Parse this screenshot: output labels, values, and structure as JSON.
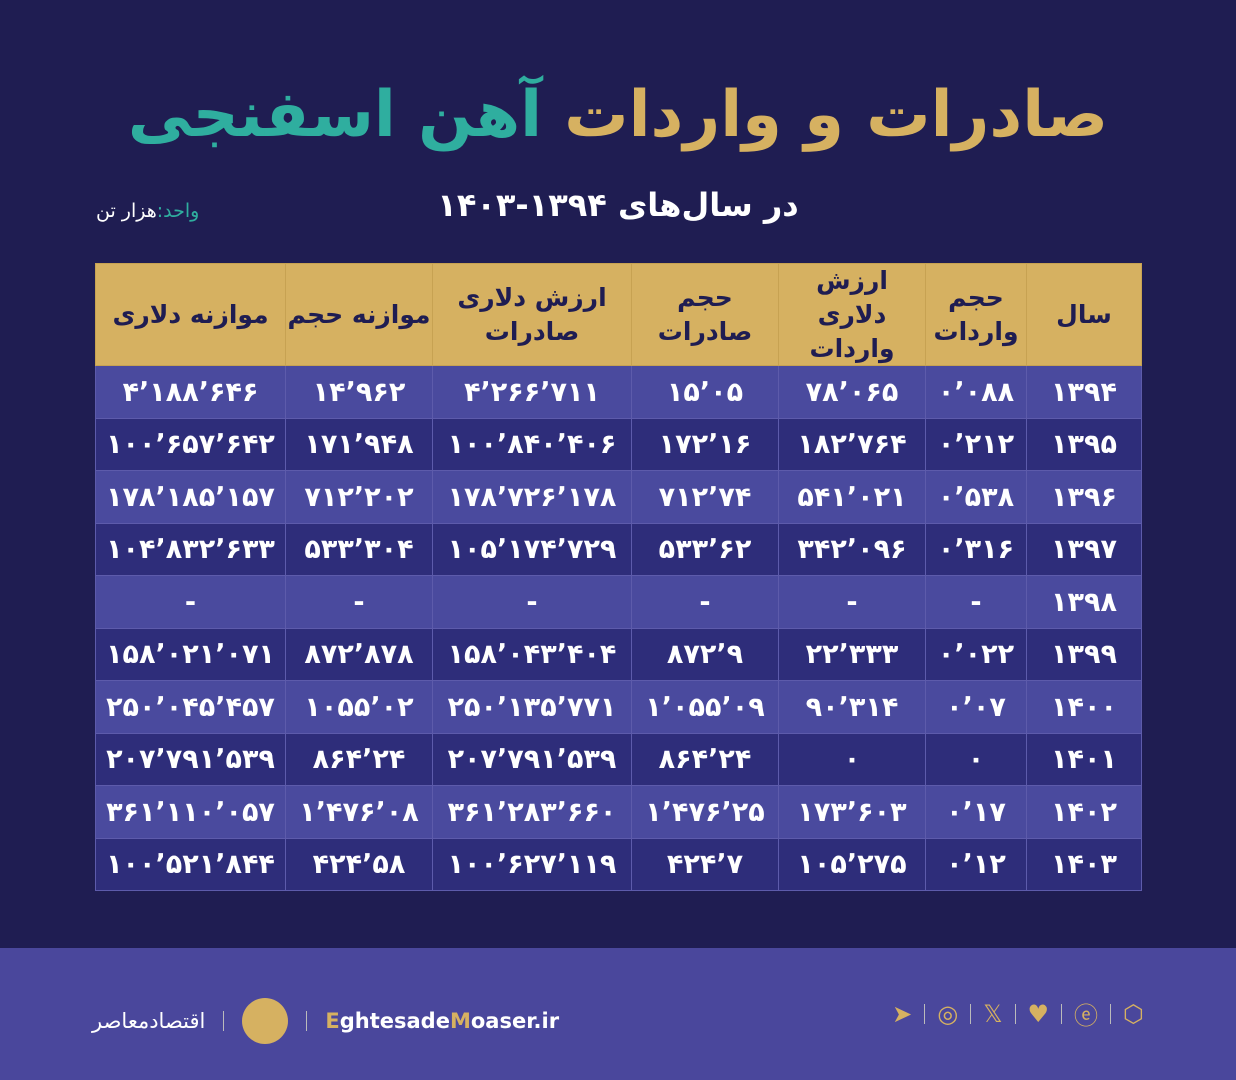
{
  "title": {
    "part1": "صادرات و واردات",
    "part2": "آهن اسفنجی"
  },
  "subtitle": "در سال‌های ۱۳۹۴-۱۴۰۳",
  "unit": {
    "label": "واحد:",
    "value": "هزار تن"
  },
  "chart_data": {
    "type": "table",
    "columns": [
      "سال",
      "حجم واردات",
      "ارزش دلاری واردات",
      "حجم صادرات",
      "ارزش دلاری صادرات",
      "موازنه حجم",
      "موازنه دلاری"
    ],
    "rows": [
      [
        "۱۳۹۴",
        "۰٬۰۸۸",
        "۷۸٬۰۶۵",
        "۱۵٬۰۵",
        "۴٬۲۶۶٬۷۱۱",
        "۱۴٬۹۶۲",
        "۴٬۱۸۸٬۶۴۶"
      ],
      [
        "۱۳۹۵",
        "۰٬۲۱۲",
        "۱۸۲٬۷۶۴",
        "۱۷۲٬۱۶",
        "۱۰۰٬۸۴۰٬۴۰۶",
        "۱۷۱٬۹۴۸",
        "۱۰۰٬۶۵۷٬۶۴۲"
      ],
      [
        "۱۳۹۶",
        "۰٬۵۳۸",
        "۵۴۱٬۰۲۱",
        "۷۱۲٬۷۴",
        "۱۷۸٬۷۲۶٬۱۷۸",
        "۷۱۲٬۲۰۲",
        "۱۷۸٬۱۸۵٬۱۵۷"
      ],
      [
        "۱۳۹۷",
        "۰٬۳۱۶",
        "۳۴۲٬۰۹۶",
        "۵۳۳٬۶۲",
        "۱۰۵٬۱۷۴٬۷۲۹",
        "۵۳۳٬۳۰۴",
        "۱۰۴٬۸۳۲٬۶۳۳"
      ],
      [
        "۱۳۹۸",
        "-",
        "-",
        "-",
        "-",
        "-",
        "-"
      ],
      [
        "۱۳۹۹",
        "۰٬۰۲۲",
        "۲۲٬۳۳۳",
        "۸۷۲٬۹",
        "۱۵۸٬۰۴۳٬۴۰۴",
        "۸۷۲٬۸۷۸",
        "۱۵۸٬۰۲۱٬۰۷۱"
      ],
      [
        "۱۴۰۰",
        "۰٬۰۷",
        "۹۰٬۳۱۴",
        "۱٬۰۵۵٬۰۹",
        "۲۵۰٬۱۳۵٬۷۷۱",
        "۱۰۵۵٬۰۲",
        "۲۵۰٬۰۴۵٬۴۵۷"
      ],
      [
        "۱۴۰۱",
        "۰",
        "۰",
        "۸۶۴٬۲۴",
        "۲۰۷٬۷۹۱٬۵۳۹",
        "۸۶۴٬۲۴",
        "۲۰۷٬۷۹۱٬۵۳۹"
      ],
      [
        "۱۴۰۲",
        "۰٬۱۷",
        "۱۷۳٬۶۰۳",
        "۱٬۴۷۶٬۲۵",
        "۳۶۱٬۲۸۳٬۶۶۰",
        "۱٬۴۷۶٬۰۸",
        "۳۶۱٬۱۱۰٬۰۵۷"
      ],
      [
        "۱۴۰۳",
        "۰٬۱۲",
        "۱۰۵٬۲۷۵",
        "۴۲۴٬۷",
        "۱۰۰٬۶۲۷٬۱۱۹",
        "۴۲۴٬۵۸",
        "۱۰۰٬۵۲۱٬۸۴۴"
      ]
    ]
  },
  "footer": {
    "brand": "اقتصادمعاصر",
    "site_a": "E",
    "site_b": "ghtesade",
    "site_c": "M",
    "site_d": "oaser.ir",
    "social_icons": [
      "telegram-icon",
      "instagram-icon",
      "x-icon",
      "bale-icon",
      "eitaa-icon",
      "rubika-icon"
    ]
  },
  "colors": {
    "background": "#1f1d52",
    "header": "#d6b161",
    "accent_teal": "#2fae9f",
    "row_light": "#4a4a9e",
    "row_dark": "#2e2d7a"
  }
}
